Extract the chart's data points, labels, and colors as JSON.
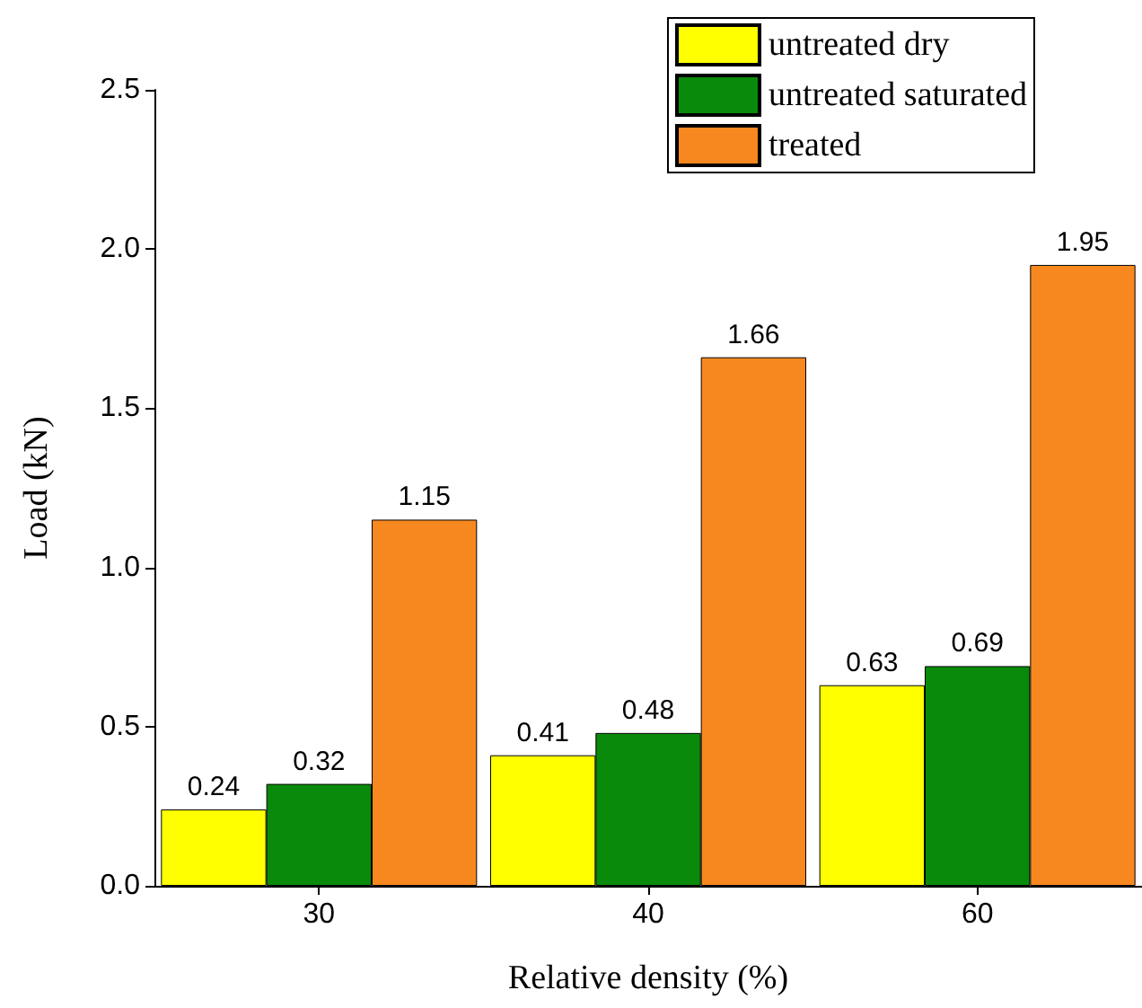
{
  "chart_data": {
    "type": "bar",
    "xlabel": "Relative density (%)",
    "ylabel": "Load (kN)",
    "categories": [
      "30",
      "40",
      "60"
    ],
    "series": [
      {
        "name": "untreated dry",
        "color": "#ffff00",
        "values": [
          0.24,
          0.41,
          0.63
        ]
      },
      {
        "name": "untreated saturated",
        "color": "#0a8a0a",
        "values": [
          0.32,
          0.48,
          0.69
        ]
      },
      {
        "name": "treated",
        "color": "#f7881f",
        "values": [
          1.15,
          1.66,
          1.95
        ]
      }
    ],
    "ylim": [
      0,
      2.5
    ],
    "yticks": [
      {
        "value": 0,
        "label": "0.0"
      },
      0.5,
      {
        "value": 1,
        "label": "1.0"
      },
      1.5,
      {
        "value": 2,
        "label": "2.0"
      },
      2.5
    ],
    "grid": false,
    "legend": "top right",
    "data_labels": true
  }
}
